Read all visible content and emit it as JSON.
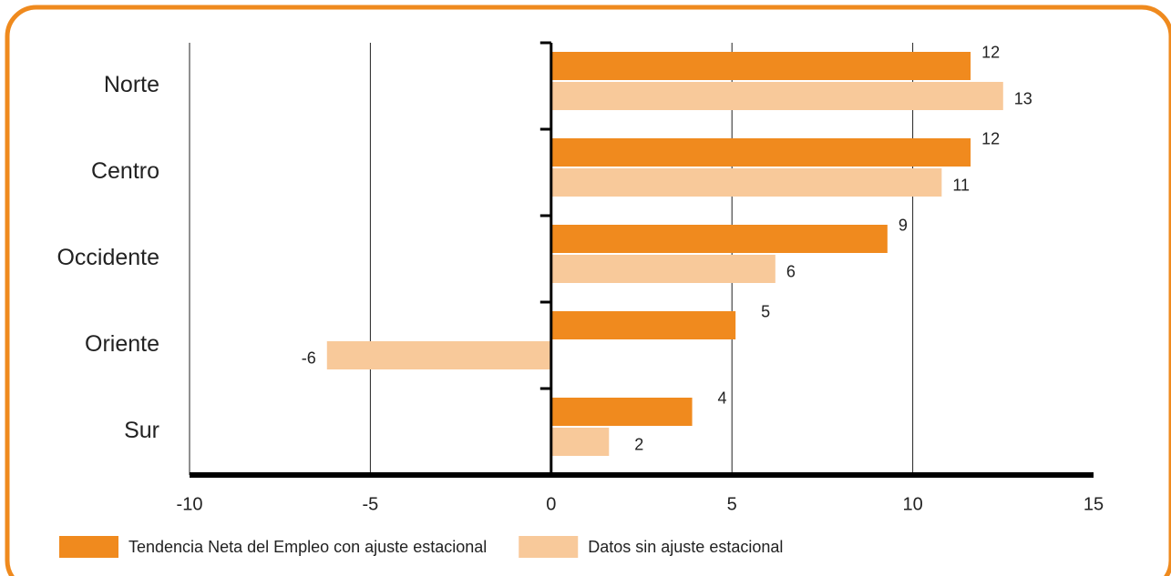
{
  "chart_data": {
    "type": "bar",
    "orientation": "horizontal",
    "categories": [
      "Norte",
      "Centro",
      "Occidente",
      "Oriente",
      "Sur"
    ],
    "series": [
      {
        "name": "Tendencia Neta del Empleo con ajuste estacional",
        "color": "#f08a1e",
        "values": [
          11.6,
          11.6,
          9.3,
          5.1,
          3.9
        ],
        "value_labels": [
          "12",
          "12",
          "9",
          "5",
          "4"
        ]
      },
      {
        "name": "Datos sin ajuste estacional",
        "color": "#f8c99a",
        "values": [
          12.5,
          10.8,
          6.2,
          -6.2,
          1.6
        ],
        "value_labels": [
          "13",
          "11",
          "6",
          "-6",
          "2"
        ]
      }
    ],
    "xlim": [
      -10,
      15
    ],
    "xticks": [
      -10,
      -5,
      0,
      5,
      10,
      15
    ],
    "grid": true,
    "legend": "bottom"
  }
}
